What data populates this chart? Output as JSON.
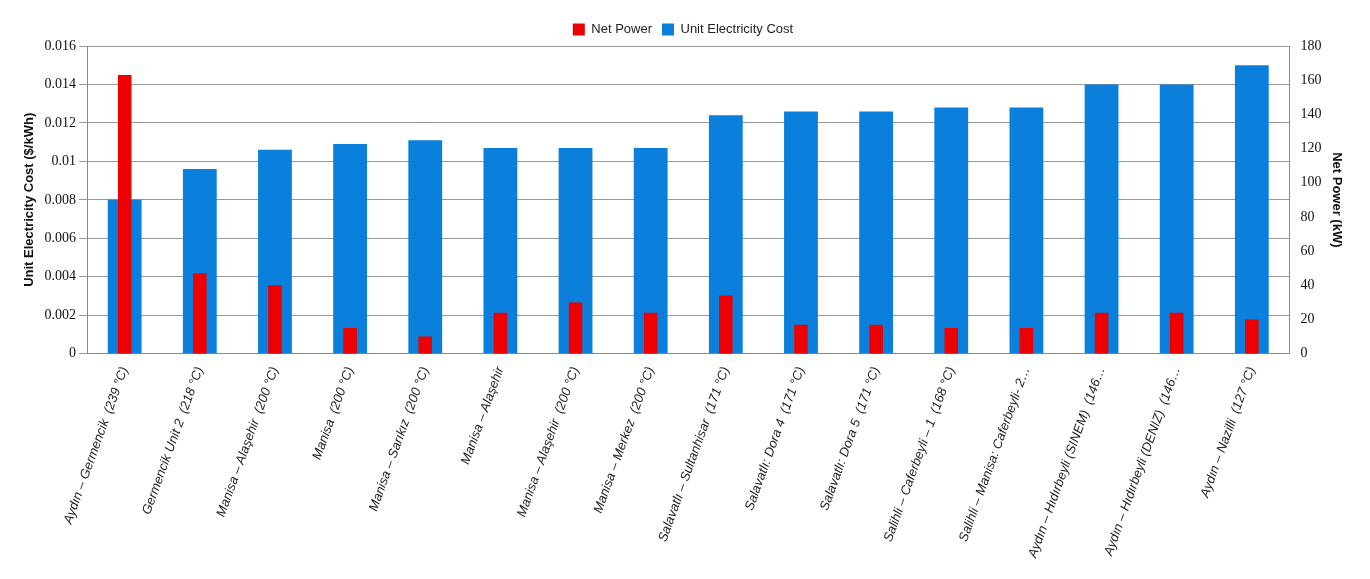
{
  "chart_data": {
    "type": "bar",
    "categories": [
      "Aydın – Germencik  (239 °C)",
      "Germencik Unit 2  (218 °C)",
      "Manisa – Alaşehir  (200 °C)",
      "Manisa  (200 °C)",
      "Manisa – Sarıkız  (200 °C)",
      "Manisa – Alaşehir",
      "Manisa – Alaşehir  (200 °C)",
      "Manisa – Merkez  (200 °C)",
      "Salavatlı – Sultanhisar  (171 °C)",
      "Salavatlı: Dora 4  (171 °C)",
      "Salavatlı: Dora 5  (171 °C)",
      "Salihli – Caferbeyli – 1  (168 °C)",
      "Salihli – Manisa: Caferbeyli- 2…",
      "Aydın – Hıdırbeyli (SINEM)  (146…",
      "Aydın – Hıdırbeyli (DENIZ)  (146…",
      "Aydın – Nazilli  (127 °C)"
    ],
    "series": [
      {
        "name": "Unit Electricity Cost",
        "color": "#0a7fdc",
        "values": [
          0.008,
          0.0096,
          0.0106,
          0.0109,
          0.0111,
          0.0107,
          0.0107,
          0.0107,
          0.0124,
          0.0126,
          0.0126,
          0.0128,
          0.0128,
          0.014,
          0.014,
          0.015
        ]
      },
      {
        "name": "Net Power",
        "color": "#ee0000",
        "axis": "y2",
        "values": [
          163,
          47,
          40,
          15,
          10,
          24,
          30,
          24,
          34,
          17,
          17,
          15,
          15,
          24,
          24,
          20
        ]
      }
    ],
    "ylabel": "Unit Electricity Cost ($/kWh)",
    "y2label": "Net Power (kW)",
    "ylim": [
      0,
      0.016
    ],
    "yticks": [
      0,
      0.002,
      0.004,
      0.006,
      0.008,
      0.01,
      0.012,
      0.014,
      0.016
    ],
    "y2lim": [
      0,
      180
    ],
    "y2ticks": [
      0,
      20,
      40,
      60,
      80,
      100,
      120,
      140,
      160,
      180
    ],
    "grid": "y",
    "legend": "top"
  }
}
